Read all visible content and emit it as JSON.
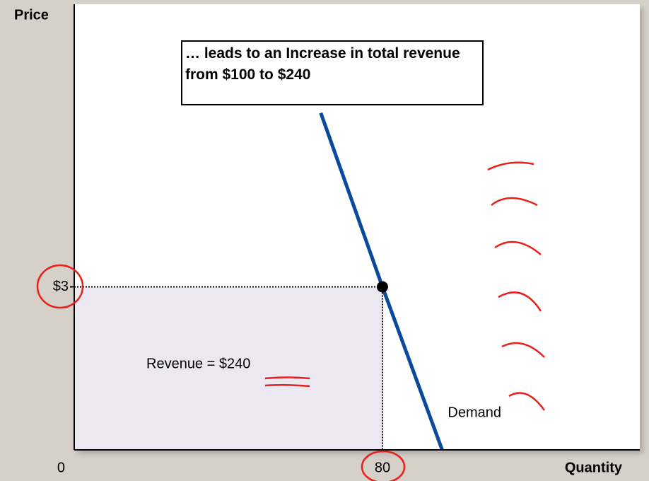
{
  "chart_data": {
    "type": "line",
    "y_label": "Price",
    "x_label": "Quantity",
    "annotation": "… leads to an Increase in total revenue from $100 to $240",
    "revenue_label": "Revenue = $240",
    "series": [
      {
        "name": "Demand",
        "color": "#0a4a9c",
        "x": [
          64,
          80,
          95.5
        ],
        "values": [
          6.2,
          3,
          0
        ]
      }
    ],
    "highlight": {
      "x": 80,
      "y": 3
    },
    "xlim": [
      0,
      146.8
    ],
    "ylim": [
      0,
      8.2
    ],
    "xticks": [
      0,
      80
    ],
    "yticks": [
      {
        "value": 3,
        "label": "$3"
      }
    ]
  }
}
